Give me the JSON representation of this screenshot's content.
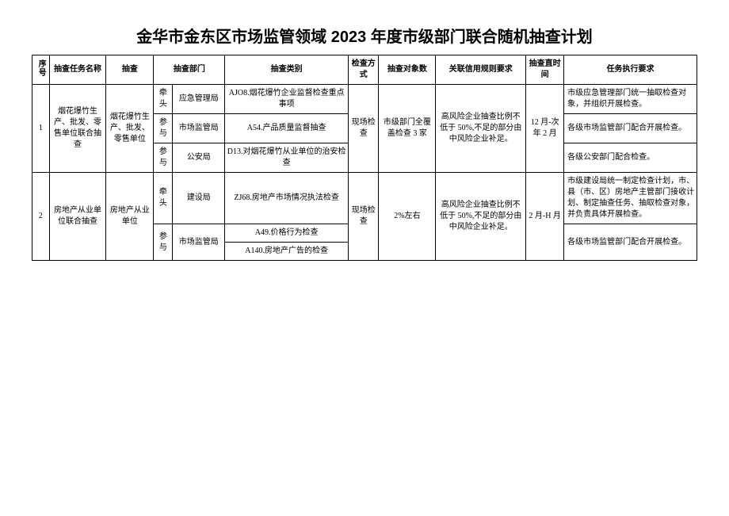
{
  "title": "金华市金东区市场监管领域 2023 年度市级部门联合随机抽查计划",
  "headers": {
    "idx": "序号",
    "task": "抽查任务名称",
    "obj": "抽查",
    "dept": "抽查部门",
    "cat": "抽查类别",
    "method": "检查方式",
    "count": "抽查对象数",
    "credit": "关联信用规则要求",
    "time": "抽查直时间",
    "req": "任务执行要求"
  },
  "rows": [
    {
      "idx": "1",
      "task": "烟花爆竹生产、批发、零售单位联合抽查",
      "obj": "烟花爆竹生产、批发、零售单位",
      "depts": [
        {
          "role": "牵头",
          "name": "应急管理局",
          "cat": "AJO8.烟花爆竹企业监督检查重点事项",
          "req": "市级应急管理部门统一抽取检查对象，并组织开展检查。"
        },
        {
          "role": "参与",
          "name": "市场监管局",
          "cat": "A54.产品质量监督抽查",
          "req": "各级市场监管部门配合开展检查。"
        },
        {
          "role": "参与",
          "name": "公安局",
          "cat": "D13.对烟花爆竹从业单位的治安检查",
          "req": "各级公安部门配合检查。"
        }
      ],
      "method": "现场检查",
      "count": "市级部门全覆盖检查 3 家",
      "credit": "高风险企业抽查比例不低于 50%,不足的部分由中风险企业补足。",
      "time": "12 月-次年 2 月"
    },
    {
      "idx": "2",
      "task": "房地产从业单位联合抽查",
      "obj": "房地产从业单位",
      "depts": [
        {
          "role": "牵头",
          "name": "建设局",
          "cat": "ZJ68.房地产市场情况执法检查",
          "req": "市级建设局统一制定检查计划，市、县（市、区）房地产主管部门接收计划、制定抽查任务、抽取检查对象，并负责具体开展检查。"
        },
        {
          "role": "参与",
          "name": "市场监管局",
          "cat": "A49.价格行为检查",
          "req": "各级市场监管部门配合开展检查。"
        },
        {
          "role": "",
          "name": "",
          "cat": "A140.房地产广告的检查",
          "req": ""
        }
      ],
      "method": "现场检查",
      "count": "2%左右",
      "credit": "高风险企业抽查比例不低于 50%,不足的部分由中风险企业补足。",
      "time": "2 月-H 月"
    }
  ]
}
